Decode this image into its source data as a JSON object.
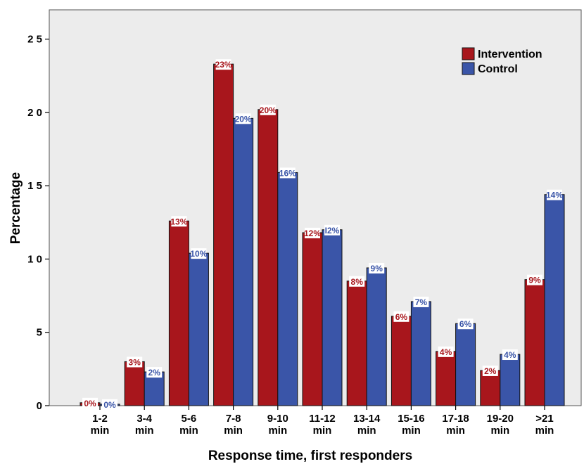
{
  "chart_data": {
    "type": "bar",
    "title": "",
    "xlabel": "Response time, first responders",
    "ylabel": "Percentage",
    "ylim": [
      0,
      27
    ],
    "yticks": [
      0,
      5,
      10,
      15,
      20,
      25
    ],
    "ytick_labels": [
      "0",
      "5",
      "1 0",
      "1 5",
      "2 0",
      "2 5"
    ],
    "grid": false,
    "legend_position": "top-right",
    "categories": [
      [
        "1-2",
        "min"
      ],
      [
        "3-4",
        "min"
      ],
      [
        "5-6",
        "min"
      ],
      [
        "7-8",
        "min"
      ],
      [
        "9-10",
        "min"
      ],
      [
        "11-12",
        "min"
      ],
      [
        "13-14",
        "min"
      ],
      [
        "15-16",
        "min"
      ],
      [
        "17-18",
        "min"
      ],
      [
        "19-20",
        "min"
      ],
      [
        ">21",
        "min"
      ]
    ],
    "series": [
      {
        "name": "Intervention",
        "color": "#A8161C",
        "values": [
          0.2,
          3.0,
          12.6,
          23.3,
          20.2,
          11.8,
          8.5,
          6.1,
          3.7,
          2.4,
          8.6
        ],
        "labels": [
          "0%",
          "3%",
          "13%",
          "23%",
          "20%",
          "12%",
          "8%",
          "6%",
          "4%",
          "2%",
          "9%"
        ]
      },
      {
        "name": "Control",
        "color": "#3A55A8",
        "values": [
          0.1,
          2.3,
          10.4,
          19.6,
          15.9,
          12.0,
          9.4,
          7.1,
          5.6,
          3.5,
          14.4
        ],
        "labels": [
          "0%",
          "2%",
          "10%",
          "20%",
          "16%",
          "I2%",
          "9%",
          "7%",
          "6%",
          "4%",
          "14%"
        ]
      }
    ]
  }
}
